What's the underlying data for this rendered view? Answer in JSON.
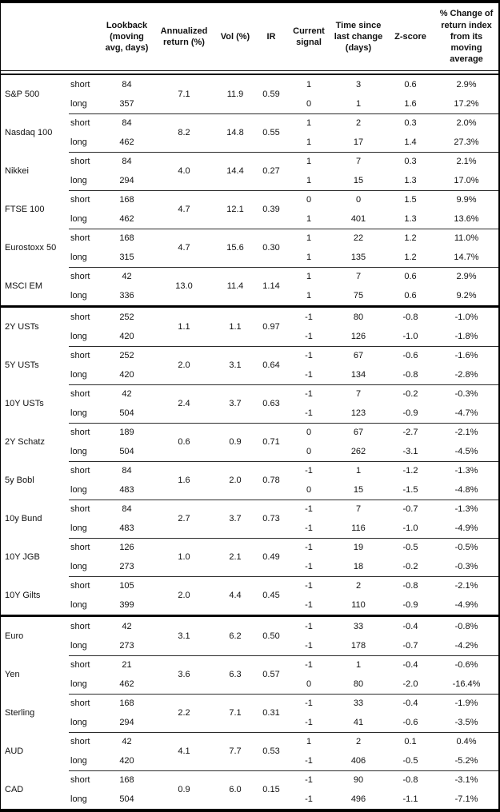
{
  "header": {
    "columns": [
      "Lookback (moving avg, days)",
      "Annualized return (%)",
      "Vol (%)",
      "IR",
      "Current signal",
      "Time since last change (days)",
      "Z-score",
      "% Change of return index from its moving average"
    ]
  },
  "side_labels": {
    "short": "short",
    "long": "long"
  },
  "colors": {
    "border": "#000000",
    "text": "#111111",
    "group_divider": "#2b2b2b"
  },
  "sections": [
    {
      "rows": [
        {
          "asset": "S&P 500",
          "annualized_return": "7.1",
          "vol": "11.9",
          "ir": "0.59",
          "short": {
            "lookback": "84",
            "signal": "1",
            "time_since_change": "3",
            "z_score": "0.6",
            "pct_change": "2.9%"
          },
          "long": {
            "lookback": "357",
            "signal": "0",
            "time_since_change": "1",
            "z_score": "1.6",
            "pct_change": "17.2%"
          }
        },
        {
          "asset": "Nasdaq 100",
          "annualized_return": "8.2",
          "vol": "14.8",
          "ir": "0.55",
          "short": {
            "lookback": "84",
            "signal": "1",
            "time_since_change": "2",
            "z_score": "0.3",
            "pct_change": "2.0%"
          },
          "long": {
            "lookback": "462",
            "signal": "1",
            "time_since_change": "17",
            "z_score": "1.4",
            "pct_change": "27.3%"
          }
        },
        {
          "asset": "Nikkei",
          "annualized_return": "4.0",
          "vol": "14.4",
          "ir": "0.27",
          "short": {
            "lookback": "84",
            "signal": "1",
            "time_since_change": "7",
            "z_score": "0.3",
            "pct_change": "2.1%"
          },
          "long": {
            "lookback": "294",
            "signal": "1",
            "time_since_change": "15",
            "z_score": "1.3",
            "pct_change": "17.0%"
          }
        },
        {
          "asset": "FTSE 100",
          "annualized_return": "4.7",
          "vol": "12.1",
          "ir": "0.39",
          "short": {
            "lookback": "168",
            "signal": "0",
            "time_since_change": "0",
            "z_score": "1.5",
            "pct_change": "9.9%"
          },
          "long": {
            "lookback": "462",
            "signal": "1",
            "time_since_change": "401",
            "z_score": "1.3",
            "pct_change": "13.6%"
          }
        },
        {
          "asset": "Eurostoxx 50",
          "annualized_return": "4.7",
          "vol": "15.6",
          "ir": "0.30",
          "short": {
            "lookback": "168",
            "signal": "1",
            "time_since_change": "22",
            "z_score": "1.2",
            "pct_change": "11.0%"
          },
          "long": {
            "lookback": "315",
            "signal": "1",
            "time_since_change": "135",
            "z_score": "1.2",
            "pct_change": "14.7%"
          }
        },
        {
          "asset": "MSCI EM",
          "annualized_return": "13.0",
          "vol": "11.4",
          "ir": "1.14",
          "short": {
            "lookback": "42",
            "signal": "1",
            "time_since_change": "7",
            "z_score": "0.6",
            "pct_change": "2.9%"
          },
          "long": {
            "lookback": "336",
            "signal": "1",
            "time_since_change": "75",
            "z_score": "0.6",
            "pct_change": "9.2%"
          }
        }
      ]
    },
    {
      "rows": [
        {
          "asset": "2Y USTs",
          "annualized_return": "1.1",
          "vol": "1.1",
          "ir": "0.97",
          "short": {
            "lookback": "252",
            "signal": "-1",
            "time_since_change": "80",
            "z_score": "-0.8",
            "pct_change": "-1.0%"
          },
          "long": {
            "lookback": "420",
            "signal": "-1",
            "time_since_change": "126",
            "z_score": "-1.0",
            "pct_change": "-1.8%"
          }
        },
        {
          "asset": "5Y USTs",
          "annualized_return": "2.0",
          "vol": "3.1",
          "ir": "0.64",
          "short": {
            "lookback": "252",
            "signal": "-1",
            "time_since_change": "67",
            "z_score": "-0.6",
            "pct_change": "-1.6%"
          },
          "long": {
            "lookback": "420",
            "signal": "-1",
            "time_since_change": "134",
            "z_score": "-0.8",
            "pct_change": "-2.8%"
          }
        },
        {
          "asset": "10Y USTs",
          "annualized_return": "2.4",
          "vol": "3.7",
          "ir": "0.63",
          "short": {
            "lookback": "42",
            "signal": "-1",
            "time_since_change": "7",
            "z_score": "-0.2",
            "pct_change": "-0.3%"
          },
          "long": {
            "lookback": "504",
            "signal": "-1",
            "time_since_change": "123",
            "z_score": "-0.9",
            "pct_change": "-4.7%"
          }
        },
        {
          "asset": "2Y Schatz",
          "annualized_return": "0.6",
          "vol": "0.9",
          "ir": "0.71",
          "short": {
            "lookback": "189",
            "signal": "0",
            "time_since_change": "67",
            "z_score": "-2.7",
            "pct_change": "-2.1%"
          },
          "long": {
            "lookback": "504",
            "signal": "0",
            "time_since_change": "262",
            "z_score": "-3.1",
            "pct_change": "-4.5%"
          }
        },
        {
          "asset": "5y Bobl",
          "annualized_return": "1.6",
          "vol": "2.0",
          "ir": "0.78",
          "short": {
            "lookback": "84",
            "signal": "-1",
            "time_since_change": "1",
            "z_score": "-1.2",
            "pct_change": "-1.3%"
          },
          "long": {
            "lookback": "483",
            "signal": "0",
            "time_since_change": "15",
            "z_score": "-1.5",
            "pct_change": "-4.8%"
          }
        },
        {
          "asset": "10y Bund",
          "annualized_return": "2.7",
          "vol": "3.7",
          "ir": "0.73",
          "short": {
            "lookback": "84",
            "signal": "-1",
            "time_since_change": "7",
            "z_score": "-0.7",
            "pct_change": "-1.3%"
          },
          "long": {
            "lookback": "483",
            "signal": "-1",
            "time_since_change": "116",
            "z_score": "-1.0",
            "pct_change": "-4.9%"
          }
        },
        {
          "asset": "10Y JGB",
          "annualized_return": "1.0",
          "vol": "2.1",
          "ir": "0.49",
          "short": {
            "lookback": "126",
            "signal": "-1",
            "time_since_change": "19",
            "z_score": "-0.5",
            "pct_change": "-0.5%"
          },
          "long": {
            "lookback": "273",
            "signal": "-1",
            "time_since_change": "18",
            "z_score": "-0.2",
            "pct_change": "-0.3%"
          }
        },
        {
          "asset": "10Y Gilts",
          "annualized_return": "2.0",
          "vol": "4.4",
          "ir": "0.45",
          "short": {
            "lookback": "105",
            "signal": "-1",
            "time_since_change": "2",
            "z_score": "-0.8",
            "pct_change": "-2.1%"
          },
          "long": {
            "lookback": "399",
            "signal": "-1",
            "time_since_change": "110",
            "z_score": "-0.9",
            "pct_change": "-4.9%"
          }
        }
      ]
    },
    {
      "rows": [
        {
          "asset": "Euro",
          "annualized_return": "3.1",
          "vol": "6.2",
          "ir": "0.50",
          "short": {
            "lookback": "42",
            "signal": "-1",
            "time_since_change": "33",
            "z_score": "-0.4",
            "pct_change": "-0.8%"
          },
          "long": {
            "lookback": "273",
            "signal": "-1",
            "time_since_change": "178",
            "z_score": "-0.7",
            "pct_change": "-4.2%"
          }
        },
        {
          "asset": "Yen",
          "annualized_return": "3.6",
          "vol": "6.3",
          "ir": "0.57",
          "short": {
            "lookback": "21",
            "signal": "-1",
            "time_since_change": "1",
            "z_score": "-0.4",
            "pct_change": "-0.6%"
          },
          "long": {
            "lookback": "462",
            "signal": "0",
            "time_since_change": "80",
            "z_score": "-2.0",
            "pct_change": "-16.4%"
          }
        },
        {
          "asset": "Sterling",
          "annualized_return": "2.2",
          "vol": "7.1",
          "ir": "0.31",
          "short": {
            "lookback": "168",
            "signal": "-1",
            "time_since_change": "33",
            "z_score": "-0.4",
            "pct_change": "-1.9%"
          },
          "long": {
            "lookback": "294",
            "signal": "-1",
            "time_since_change": "41",
            "z_score": "-0.6",
            "pct_change": "-3.5%"
          }
        },
        {
          "asset": "AUD",
          "annualized_return": "4.1",
          "vol": "7.7",
          "ir": "0.53",
          "short": {
            "lookback": "42",
            "signal": "1",
            "time_since_change": "2",
            "z_score": "0.1",
            "pct_change": "0.4%"
          },
          "long": {
            "lookback": "420",
            "signal": "-1",
            "time_since_change": "406",
            "z_score": "-0.5",
            "pct_change": "-5.2%"
          }
        },
        {
          "asset": "CAD",
          "annualized_return": "0.9",
          "vol": "6.0",
          "ir": "0.15",
          "short": {
            "lookback": "168",
            "signal": "-1",
            "time_since_change": "90",
            "z_score": "-0.8",
            "pct_change": "-3.1%"
          },
          "long": {
            "lookback": "504",
            "signal": "-1",
            "time_since_change": "496",
            "z_score": "-1.1",
            "pct_change": "-7.1%"
          }
        }
      ]
    }
  ]
}
